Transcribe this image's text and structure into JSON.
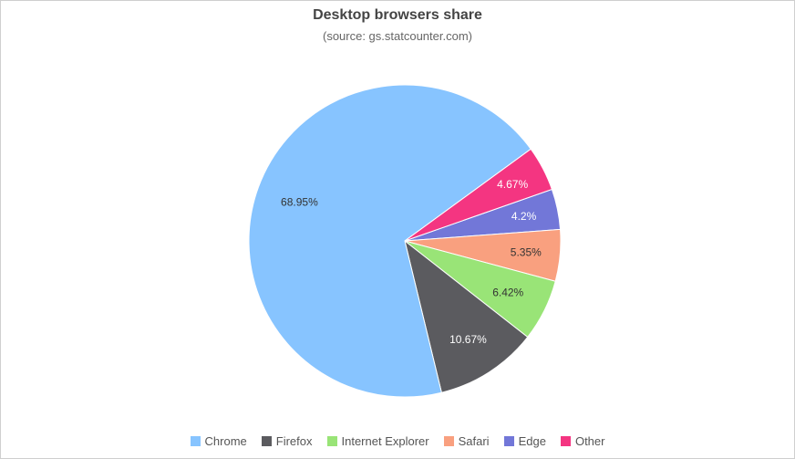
{
  "chart_data": {
    "type": "pie",
    "title": "Desktop browsers share",
    "subtitle": "(source: gs.statcounter.com)",
    "series": [
      {
        "name": "Chrome",
        "value": 68.95,
        "label": "68.95%",
        "color": "#87c4ff"
      },
      {
        "name": "Firefox",
        "value": 10.67,
        "label": "10.67%",
        "color": "#5b5b5f"
      },
      {
        "name": "Internet Explorer",
        "value": 6.42,
        "label": "6.42%",
        "color": "#99e477"
      },
      {
        "name": "Safari",
        "value": 5.35,
        "label": "5.35%",
        "color": "#f9a07f"
      },
      {
        "name": "Edge",
        "value": 4.2,
        "label": "4.2%",
        "color": "#7277d8"
      },
      {
        "name": "Other",
        "value": 4.67,
        "label": "4.67%",
        "color": "#f43581"
      }
    ],
    "legend_position": "bottom"
  }
}
